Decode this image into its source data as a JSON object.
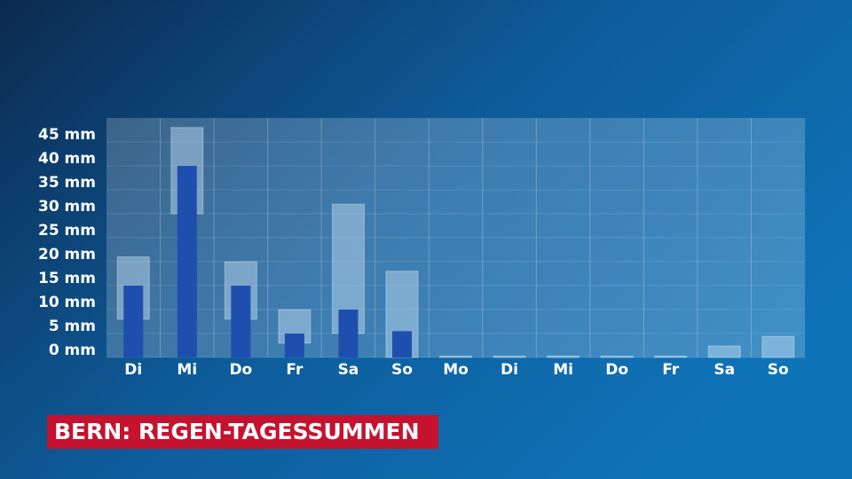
{
  "chart_data": {
    "type": "bar",
    "title": "BERN: REGEN-TAGESSUMMEN",
    "categories": [
      "Di",
      "Mi",
      "Do",
      "Fr",
      "Sa",
      "So",
      "Mo",
      "Di",
      "Mi",
      "Do",
      "Fr",
      "Sa",
      "So"
    ],
    "values": [
      15,
      40,
      15,
      5,
      10,
      5.5,
      null,
      null,
      null,
      null,
      null,
      null,
      null
    ],
    "low": [
      8,
      30,
      8,
      3,
      5,
      0,
      0,
      0,
      0,
      0,
      0,
      0,
      0
    ],
    "high": [
      21,
      48,
      20,
      10,
      32,
      18,
      0.3,
      0.3,
      0.3,
      0.3,
      0.3,
      2.4,
      4.4
    ],
    "color": "#1f4fae",
    "range_color": "rgba(200,225,245,0.45)",
    "ylim": [
      0,
      50
    ],
    "yticks": [
      {
        "value": 0,
        "label": "0 mm"
      },
      {
        "value": 5,
        "label": "5 mm"
      },
      {
        "value": 10,
        "label": "10 mm"
      },
      {
        "value": 15,
        "label": "15 mm"
      },
      {
        "value": 20,
        "label": "20 mm"
      },
      {
        "value": 25,
        "label": "25 mm"
      },
      {
        "value": 30,
        "label": "30 mm"
      },
      {
        "value": 35,
        "label": "35 mm"
      },
      {
        "value": 40,
        "label": "40 mm"
      },
      {
        "value": 45,
        "label": "45 mm"
      }
    ],
    "grid": true
  }
}
